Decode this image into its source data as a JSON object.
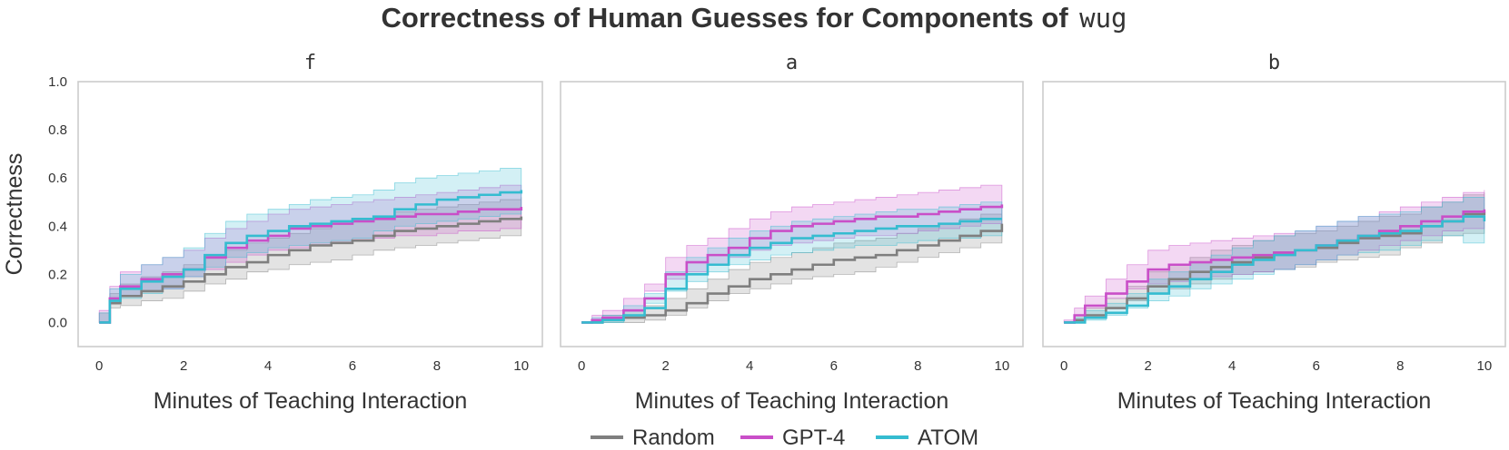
{
  "figure": {
    "title": "Correctness of Human Guesses for Components of",
    "title_code": "wug"
  },
  "colors": {
    "Random": "#7f7f7f",
    "GPT-4": "#c94fc8",
    "ATOM": "#35bcd0"
  },
  "legend": [
    "Random",
    "GPT-4",
    "ATOM"
  ],
  "chart_data": [
    {
      "type": "line",
      "panel_title": "f",
      "xlabel": "Minutes of Teaching Interaction",
      "ylabel": "Correctness",
      "xlim": [
        -0.5,
        10.5
      ],
      "ylim": [
        -0.1,
        1.0
      ],
      "xticks": [
        0,
        2,
        4,
        6,
        8,
        10
      ],
      "yticks": [
        0.0,
        0.2,
        0.4,
        0.6,
        0.8,
        1.0
      ],
      "grid": false,
      "x": [
        0,
        0.25,
        0.5,
        1,
        1.5,
        2,
        2.5,
        3,
        3.5,
        4,
        4.5,
        5,
        5.5,
        6,
        6.5,
        7,
        7.5,
        8,
        8.5,
        9,
        9.5,
        10
      ],
      "series": [
        {
          "name": "Random",
          "values": [
            0,
            0.08,
            0.11,
            0.13,
            0.15,
            0.17,
            0.2,
            0.23,
            0.25,
            0.28,
            0.3,
            0.32,
            0.33,
            0.34,
            0.36,
            0.38,
            0.39,
            0.4,
            0.41,
            0.42,
            0.43,
            0.44
          ],
          "lower": [
            0,
            0.04,
            0.06,
            0.07,
            0.09,
            0.1,
            0.13,
            0.16,
            0.18,
            0.21,
            0.22,
            0.24,
            0.25,
            0.26,
            0.28,
            0.3,
            0.31,
            0.32,
            0.33,
            0.34,
            0.35,
            0.36
          ],
          "upper": [
            0,
            0.12,
            0.16,
            0.19,
            0.21,
            0.24,
            0.27,
            0.3,
            0.33,
            0.35,
            0.37,
            0.39,
            0.41,
            0.42,
            0.44,
            0.46,
            0.47,
            0.48,
            0.49,
            0.5,
            0.51,
            0.52
          ]
        },
        {
          "name": "GPT-4",
          "values": [
            0,
            0.1,
            0.15,
            0.18,
            0.2,
            0.22,
            0.27,
            0.31,
            0.34,
            0.36,
            0.39,
            0.4,
            0.41,
            0.42,
            0.43,
            0.44,
            0.45,
            0.45,
            0.46,
            0.47,
            0.47,
            0.48
          ],
          "lower": [
            0,
            0.05,
            0.09,
            0.11,
            0.13,
            0.14,
            0.19,
            0.22,
            0.25,
            0.28,
            0.3,
            0.31,
            0.32,
            0.33,
            0.34,
            0.35,
            0.36,
            0.36,
            0.37,
            0.38,
            0.38,
            0.39
          ],
          "upper": [
            0,
            0.15,
            0.21,
            0.24,
            0.27,
            0.3,
            0.35,
            0.39,
            0.42,
            0.45,
            0.47,
            0.48,
            0.49,
            0.5,
            0.51,
            0.52,
            0.53,
            0.54,
            0.55,
            0.56,
            0.57,
            0.57
          ]
        },
        {
          "name": "ATOM",
          "values": [
            0,
            0.09,
            0.14,
            0.17,
            0.19,
            0.22,
            0.28,
            0.33,
            0.36,
            0.38,
            0.4,
            0.41,
            0.42,
            0.43,
            0.44,
            0.47,
            0.49,
            0.51,
            0.52,
            0.53,
            0.54,
            0.55
          ],
          "lower": [
            0,
            0.04,
            0.08,
            0.1,
            0.12,
            0.14,
            0.19,
            0.23,
            0.27,
            0.29,
            0.31,
            0.32,
            0.33,
            0.34,
            0.35,
            0.38,
            0.4,
            0.41,
            0.42,
            0.43,
            0.44,
            0.45
          ],
          "upper": [
            0,
            0.14,
            0.2,
            0.24,
            0.27,
            0.31,
            0.37,
            0.42,
            0.45,
            0.47,
            0.49,
            0.51,
            0.52,
            0.53,
            0.55,
            0.58,
            0.6,
            0.61,
            0.62,
            0.63,
            0.64,
            0.64
          ]
        }
      ]
    },
    {
      "type": "line",
      "panel_title": "a",
      "xlabel": "Minutes of Teaching Interaction",
      "ylabel": "",
      "xlim": [
        -0.5,
        10.5
      ],
      "ylim": [
        -0.1,
        1.0
      ],
      "xticks": [
        0,
        2,
        4,
        6,
        8,
        10
      ],
      "grid": false,
      "x": [
        0,
        0.25,
        0.5,
        1,
        1.5,
        2,
        2.5,
        3,
        3.5,
        4,
        4.5,
        5,
        5.5,
        6,
        6.5,
        7,
        7.5,
        8,
        8.5,
        9,
        9.5,
        10
      ],
      "series": [
        {
          "name": "Random",
          "values": [
            0,
            0.0,
            0.01,
            0.02,
            0.03,
            0.05,
            0.08,
            0.12,
            0.15,
            0.18,
            0.2,
            0.22,
            0.24,
            0.26,
            0.27,
            0.28,
            0.3,
            0.32,
            0.34,
            0.36,
            0.38,
            0.41
          ],
          "lower": [
            0,
            0.0,
            0.0,
            0.0,
            0.0,
            0.01,
            0.03,
            0.06,
            0.09,
            0.12,
            0.14,
            0.16,
            0.18,
            0.19,
            0.2,
            0.21,
            0.23,
            0.25,
            0.27,
            0.29,
            0.31,
            0.33
          ],
          "upper": [
            0,
            0.01,
            0.03,
            0.05,
            0.07,
            0.1,
            0.14,
            0.18,
            0.22,
            0.25,
            0.27,
            0.29,
            0.31,
            0.33,
            0.34,
            0.35,
            0.37,
            0.39,
            0.41,
            0.43,
            0.45,
            0.48
          ]
        },
        {
          "name": "GPT-4",
          "values": [
            0,
            0.01,
            0.02,
            0.05,
            0.1,
            0.2,
            0.25,
            0.28,
            0.31,
            0.35,
            0.38,
            0.4,
            0.41,
            0.42,
            0.43,
            0.44,
            0.44,
            0.45,
            0.46,
            0.47,
            0.48,
            0.49
          ],
          "lower": [
            0,
            0.0,
            0.0,
            0.01,
            0.05,
            0.13,
            0.18,
            0.21,
            0.24,
            0.27,
            0.3,
            0.32,
            0.33,
            0.34,
            0.35,
            0.36,
            0.36,
            0.37,
            0.38,
            0.39,
            0.4,
            0.41
          ],
          "upper": [
            0,
            0.03,
            0.05,
            0.1,
            0.16,
            0.27,
            0.32,
            0.35,
            0.39,
            0.43,
            0.46,
            0.48,
            0.49,
            0.5,
            0.51,
            0.52,
            0.53,
            0.54,
            0.55,
            0.56,
            0.57,
            0.57
          ]
        },
        {
          "name": "ATOM",
          "values": [
            0,
            0.0,
            0.01,
            0.03,
            0.06,
            0.14,
            0.2,
            0.24,
            0.28,
            0.31,
            0.33,
            0.35,
            0.36,
            0.37,
            0.38,
            0.39,
            0.4,
            0.4,
            0.41,
            0.42,
            0.43,
            0.43
          ],
          "lower": [
            0,
            0.0,
            0.0,
            0.0,
            0.02,
            0.08,
            0.13,
            0.17,
            0.21,
            0.24,
            0.26,
            0.28,
            0.29,
            0.3,
            0.31,
            0.32,
            0.32,
            0.33,
            0.34,
            0.35,
            0.35,
            0.36
          ],
          "upper": [
            0,
            0.02,
            0.03,
            0.07,
            0.12,
            0.21,
            0.27,
            0.31,
            0.35,
            0.38,
            0.4,
            0.42,
            0.43,
            0.44,
            0.45,
            0.46,
            0.47,
            0.47,
            0.48,
            0.49,
            0.5,
            0.5
          ]
        }
      ]
    },
    {
      "type": "line",
      "panel_title": "b",
      "xlabel": "Minutes of Teaching Interaction",
      "ylabel": "",
      "xlim": [
        -0.5,
        10.5
      ],
      "ylim": [
        -0.1,
        1.0
      ],
      "xticks": [
        0,
        2,
        4,
        6,
        8,
        10
      ],
      "grid": false,
      "x": [
        0,
        0.25,
        0.5,
        1,
        1.5,
        2,
        2.5,
        3,
        3.5,
        4,
        4.5,
        5,
        5.5,
        6,
        6.5,
        7,
        7.5,
        8,
        8.5,
        9,
        9.5,
        10
      ],
      "series": [
        {
          "name": "Random",
          "values": [
            0,
            0.01,
            0.03,
            0.06,
            0.1,
            0.15,
            0.18,
            0.21,
            0.23,
            0.25,
            0.27,
            0.29,
            0.3,
            0.31,
            0.33,
            0.35,
            0.36,
            0.37,
            0.4,
            0.42,
            0.45,
            0.46
          ],
          "lower": [
            0,
            0.0,
            0.01,
            0.03,
            0.06,
            0.09,
            0.12,
            0.14,
            0.16,
            0.18,
            0.2,
            0.21,
            0.22,
            0.23,
            0.25,
            0.26,
            0.27,
            0.28,
            0.31,
            0.33,
            0.36,
            0.37
          ],
          "upper": [
            0,
            0.03,
            0.06,
            0.1,
            0.15,
            0.21,
            0.24,
            0.27,
            0.3,
            0.32,
            0.34,
            0.36,
            0.37,
            0.38,
            0.4,
            0.42,
            0.44,
            0.45,
            0.48,
            0.5,
            0.53,
            0.54
          ]
        },
        {
          "name": "GPT-4",
          "values": [
            0,
            0.03,
            0.07,
            0.12,
            0.17,
            0.22,
            0.24,
            0.25,
            0.26,
            0.27,
            0.28,
            0.29,
            0.3,
            0.32,
            0.34,
            0.36,
            0.38,
            0.4,
            0.42,
            0.44,
            0.46,
            0.47
          ],
          "lower": [
            0,
            0.01,
            0.03,
            0.06,
            0.1,
            0.14,
            0.16,
            0.17,
            0.18,
            0.19,
            0.2,
            0.21,
            0.22,
            0.24,
            0.26,
            0.28,
            0.3,
            0.32,
            0.34,
            0.36,
            0.38,
            0.39
          ],
          "upper": [
            0,
            0.06,
            0.11,
            0.18,
            0.24,
            0.3,
            0.32,
            0.33,
            0.34,
            0.35,
            0.36,
            0.37,
            0.38,
            0.4,
            0.42,
            0.44,
            0.46,
            0.48,
            0.5,
            0.52,
            0.54,
            0.55
          ]
        },
        {
          "name": "ATOM",
          "values": [
            0,
            0.0,
            0.02,
            0.04,
            0.07,
            0.12,
            0.15,
            0.18,
            0.21,
            0.24,
            0.26,
            0.28,
            0.3,
            0.32,
            0.34,
            0.36,
            0.37,
            0.38,
            0.4,
            0.42,
            0.44,
            0.42
          ],
          "lower": [
            0,
            0.0,
            0.0,
            0.01,
            0.03,
            0.06,
            0.09,
            0.11,
            0.14,
            0.16,
            0.18,
            0.2,
            0.22,
            0.24,
            0.26,
            0.28,
            0.29,
            0.3,
            0.32,
            0.34,
            0.36,
            0.33
          ],
          "upper": [
            0,
            0.02,
            0.05,
            0.08,
            0.12,
            0.18,
            0.21,
            0.25,
            0.28,
            0.31,
            0.34,
            0.36,
            0.38,
            0.4,
            0.42,
            0.44,
            0.45,
            0.46,
            0.48,
            0.5,
            0.52,
            0.5
          ]
        }
      ]
    }
  ]
}
